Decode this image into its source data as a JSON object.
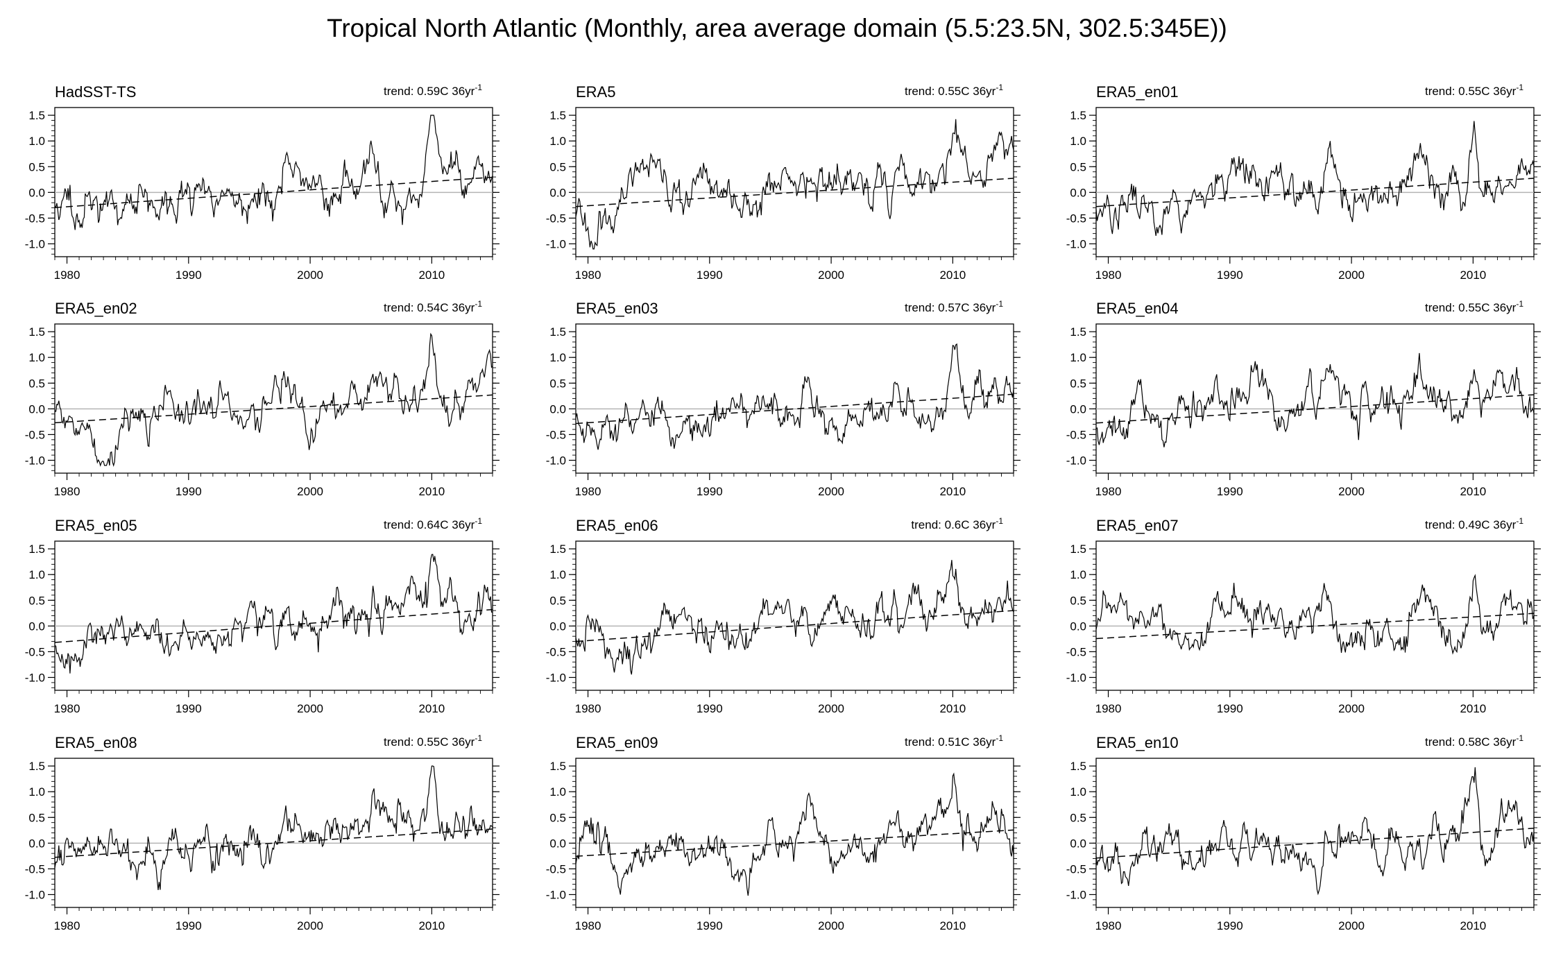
{
  "title": "Tropical North Atlantic (Monthly, area average domain (5.5:23.5N, 302.5:345E))",
  "chart_data": {
    "type": "line",
    "layout": "4x3 grid of panels",
    "x_ticks": [
      1980,
      1990,
      2000,
      2010
    ],
    "xlim": [
      1979,
      2015
    ],
    "y_ticks": [
      "1.5",
      "1.0",
      "0.5",
      "0.0",
      "-0.5",
      "-1.0"
    ],
    "ylim": [
      -1.25,
      1.65
    ],
    "trend_units": "36yr",
    "trend_exponent": "-1",
    "reference_line": 0,
    "panels": [
      {
        "name": "HadSST-TS",
        "trend_label": "trend: 0.59C 36yr",
        "trend": 0.59,
        "seed": 11
      },
      {
        "name": "ERA5",
        "trend_label": "trend: 0.55C 36yr",
        "trend": 0.55,
        "seed": 23
      },
      {
        "name": "ERA5_en01",
        "trend_label": "trend: 0.55C 36yr",
        "trend": 0.55,
        "seed": 37
      },
      {
        "name": "ERA5_en02",
        "trend_label": "trend: 0.54C 36yr",
        "trend": 0.54,
        "seed": 41
      },
      {
        "name": "ERA5_en03",
        "trend_label": "trend: 0.57C 36yr",
        "trend": 0.57,
        "seed": 53
      },
      {
        "name": "ERA5_en04",
        "trend_label": "trend: 0.55C 36yr",
        "trend": 0.55,
        "seed": 67
      },
      {
        "name": "ERA5_en05",
        "trend_label": "trend: 0.64C 36yr",
        "trend": 0.64,
        "seed": 71
      },
      {
        "name": "ERA5_en06",
        "trend_label": "trend: 0.6C 36yr",
        "trend": 0.6,
        "seed": 83
      },
      {
        "name": "ERA5_en07",
        "trend_label": "trend: 0.49C 36yr",
        "trend": 0.49,
        "seed": 97
      },
      {
        "name": "ERA5_en08",
        "trend_label": "trend: 0.55C 36yr",
        "trend": 0.55,
        "seed": 101
      },
      {
        "name": "ERA5_en09",
        "trend_label": "trend: 0.51C 36yr",
        "trend": 0.51,
        "seed": 113
      },
      {
        "name": "ERA5_en10",
        "trend_label": "trend: 0.58C 36yr",
        "trend": 0.58,
        "seed": 127
      }
    ],
    "colors": {
      "series": "#000000",
      "zero_line": "#b4b4b4",
      "axis": "#000000"
    }
  }
}
